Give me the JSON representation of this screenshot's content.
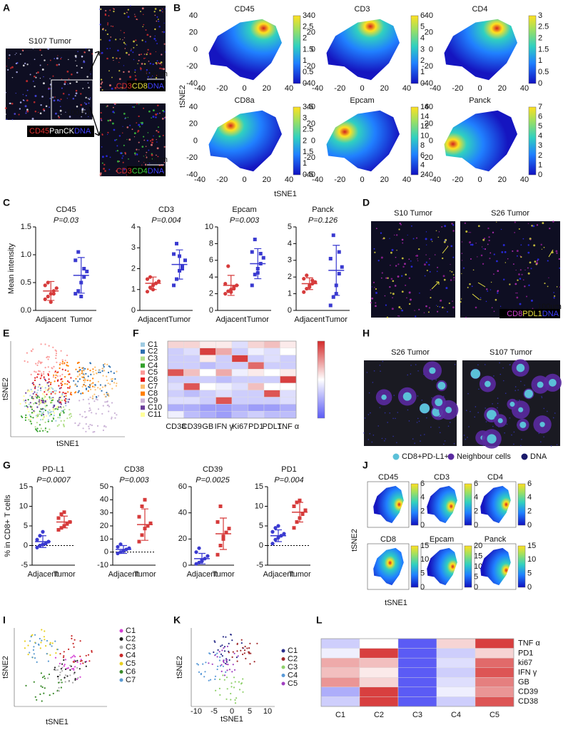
{
  "panel_labels": [
    "A",
    "B",
    "C",
    "D",
    "E",
    "F",
    "G",
    "H",
    "I",
    "J",
    "K",
    "L"
  ],
  "panel_a": {
    "title": "S107 Tumor",
    "scale": "100µm",
    "main_legend": [
      "CD45",
      "PanCK",
      "DNA"
    ],
    "top_legend": [
      "CD3",
      "CD8",
      "DNA"
    ],
    "bottom_legend": [
      "CD3",
      "CD4",
      "DNA"
    ]
  },
  "panel_b": {
    "xlabel": "tSNE1",
    "ylabel": "tSNE2",
    "xticks": [
      -40,
      -20,
      0,
      20,
      40
    ],
    "yticks": [
      -40,
      -20,
      0,
      20,
      40
    ],
    "maps": [
      {
        "title": "CD45",
        "colorbar": [
          "0",
          "0.5",
          "1",
          "1.5",
          "2",
          "2.5",
          "3"
        ]
      },
      {
        "title": "CD3",
        "colorbar": [
          "0",
          "1",
          "2",
          "3",
          "4",
          "5",
          "6"
        ]
      },
      {
        "title": "CD4",
        "colorbar": [
          "0",
          "0.5",
          "1",
          "1.5",
          "2",
          "2.5",
          "3"
        ]
      },
      {
        "title": "CD8a",
        "colorbar": [
          "0.5",
          "1",
          "1.5",
          "2",
          "2.5",
          "3",
          "3.5"
        ]
      },
      {
        "title": "Epcam",
        "colorbar": [
          "2",
          "4",
          "6",
          "8",
          "10",
          "12",
          "14",
          "16"
        ]
      },
      {
        "title": "Panck",
        "colorbar": [
          "0",
          "1",
          "2",
          "3",
          "4",
          "5",
          "6",
          "7"
        ]
      }
    ]
  },
  "panel_d": {
    "titles": [
      "S10 Tumor",
      "S26 Tumor"
    ],
    "legend": [
      "CD8",
      "PDL1",
      "DNA"
    ],
    "scale": "100µm"
  },
  "panel_e": {
    "xlabel": "tSNE1",
    "ylabel": "tSNE2"
  },
  "panel_h": {
    "titles": [
      "S26 Tumor",
      "S107 Tumor"
    ],
    "legend": [
      {
        "name": "CD8+PD-L1+",
        "color": "#5bc0d8"
      },
      {
        "name": "Neighbour cells",
        "color": "#5a2aa0"
      },
      {
        "name": "DNA",
        "color": "#1a1a6a"
      }
    ]
  },
  "panel_i": {
    "xlabel": "tSNE1",
    "ylabel": "tSNE2",
    "legend": [
      {
        "name": "C1",
        "color": "#d43fd4"
      },
      {
        "name": "C2",
        "color": "#222222"
      },
      {
        "name": "C3",
        "color": "#aaaaaa"
      },
      {
        "name": "C4",
        "color": "#c82828"
      },
      {
        "name": "C5",
        "color": "#e8d020"
      },
      {
        "name": "C6",
        "color": "#3a8a2a"
      },
      {
        "name": "C7",
        "color": "#5a9ad0"
      }
    ]
  },
  "panel_j": {
    "xlabel": "tSNE1",
    "ylabel": "tSNE2",
    "maps": [
      {
        "title": "CD45",
        "colorbar": [
          "0",
          "2",
          "4",
          "6"
        ]
      },
      {
        "title": "CD3",
        "colorbar": [
          "0",
          "2",
          "4",
          "6"
        ]
      },
      {
        "title": "CD4",
        "colorbar": [
          "0",
          "2",
          "4",
          "6"
        ]
      },
      {
        "title": "CD8",
        "colorbar": [
          "0",
          "5",
          "10",
          "15"
        ]
      },
      {
        "title": "Epcam",
        "colorbar": [
          "0",
          "5",
          "10",
          "15",
          "20"
        ]
      },
      {
        "title": "Panck",
        "colorbar": [
          "0",
          "5",
          "10",
          "15"
        ]
      }
    ]
  },
  "panel_k": {
    "xlabel": "tSNE1",
    "ylabel": "tSNE2",
    "xticks": [
      -10,
      -5,
      0,
      5,
      10
    ],
    "legend": [
      {
        "name": "C1",
        "color": "#2b2f8a"
      },
      {
        "name": "C2",
        "color": "#a0282a"
      },
      {
        "name": "C3",
        "color": "#8fd06a"
      },
      {
        "name": "C4",
        "color": "#5a9ad8"
      },
      {
        "name": "C5",
        "color": "#a040c0"
      }
    ]
  },
  "chart_data": [
    {
      "type": "dot",
      "title": "CD45",
      "subtitle": "P=0.03",
      "ylabel": "Mean intensity",
      "categories": [
        "Adjacent",
        "Tumor"
      ],
      "colors": [
        "#d63b3b",
        "#3a3ad0"
      ],
      "ylim": [
        0,
        1.5
      ],
      "yticks": [
        {
          "value": 0,
          "label": "0.0"
        },
        {
          "value": 0.5,
          "label": "0.5"
        },
        {
          "value": 1,
          "label": "1.0"
        },
        {
          "value": 1.5,
          "label": "1.5"
        }
      ],
      "points": [
        [
          0.2,
          0.25,
          0.3,
          0.35,
          0.4,
          0.45,
          0.5,
          0.15,
          0.3
        ],
        [
          0.3,
          0.35,
          0.5,
          0.6,
          0.7,
          0.9,
          1.05,
          0.25,
          0.75
        ]
      ],
      "means": [
        0.35,
        0.63
      ],
      "sd": [
        0.17,
        0.32
      ]
    },
    {
      "type": "dot",
      "title": "CD3",
      "subtitle": "P=0.004",
      "categories": [
        "Adjacent",
        "Tumor"
      ],
      "colors": [
        "#d63b3b",
        "#3a3ad0"
      ],
      "ylim": [
        0,
        4
      ],
      "yticks": [
        0,
        1,
        2,
        3,
        4
      ],
      "points": [
        [
          0.9,
          1.1,
          1.2,
          1.3,
          1.4,
          1.5,
          1.6,
          1.0,
          1.3
        ],
        [
          1.2,
          1.5,
          1.9,
          2.1,
          2.4,
          2.7,
          3.2,
          2.6,
          2.0
        ]
      ],
      "means": [
        1.3,
        2.2
      ],
      "sd": [
        0.3,
        0.7
      ]
    },
    {
      "type": "dot",
      "title": "Epcam",
      "subtitle": "P=0.003",
      "categories": [
        "Adjacent",
        "Tumor"
      ],
      "colors": [
        "#d63b3b",
        "#3a3ad0"
      ],
      "ylim": [
        0,
        10
      ],
      "yticks": [
        0,
        2,
        4,
        6,
        8,
        10
      ],
      "points": [
        [
          2.0,
          2.3,
          2.5,
          2.8,
          3.0,
          3.2,
          5.3,
          2.2,
          2.6
        ],
        [
          3.0,
          4.3,
          5.0,
          5.6,
          6.3,
          7.0,
          8.5,
          4.5,
          6.8
        ]
      ],
      "means": [
        3.0,
        5.6
      ],
      "sd": [
        1.2,
        1.8
      ]
    },
    {
      "type": "dot",
      "title": "Panck",
      "subtitle": "P=0.126",
      "categories": [
        "Adjacent",
        "Tumor"
      ],
      "colors": [
        "#d63b3b",
        "#3a3ad0"
      ],
      "ylim": [
        0,
        5
      ],
      "yticks": [
        0,
        1,
        2,
        3,
        4,
        5
      ],
      "points": [
        [
          1.1,
          1.3,
          1.5,
          1.6,
          1.7,
          1.9,
          2.1,
          1.4,
          1.8
        ],
        [
          0.3,
          0.8,
          1.5,
          2.2,
          2.6,
          3.1,
          4.5,
          1.0,
          3.5
        ]
      ],
      "means": [
        1.6,
        2.4
      ],
      "sd": [
        0.35,
        1.5
      ]
    },
    {
      "type": "dot",
      "title": "PD-L1",
      "subtitle": "P=0.0007",
      "ylabel": "% in CD8+ T cells",
      "categories": [
        "Adjacent",
        "Tumor"
      ],
      "colors": [
        "#3a3ad0",
        "#d63b3b"
      ],
      "ylim": [
        -5,
        15
      ],
      "yticks": [
        -5,
        0,
        5,
        10,
        15
      ],
      "hline": 0,
      "points": [
        [
          -0.5,
          0,
          0.3,
          0.5,
          1,
          1.5,
          2.5,
          3.5
        ],
        [
          4,
          4.5,
          5,
          5.5,
          6,
          7,
          8,
          8.5
        ]
      ],
      "means": [
        1,
        6
      ],
      "sd": [
        1.5,
        1.5
      ]
    },
    {
      "type": "dot",
      "title": "CD38",
      "subtitle": "P=0.003",
      "categories": [
        "Adjacent",
        "Tumor"
      ],
      "colors": [
        "#3a3ad0",
        "#d63b3b"
      ],
      "ylim": [
        -10,
        50
      ],
      "yticks": [
        -10,
        0,
        10,
        20,
        30,
        40,
        50
      ],
      "hline": 0,
      "points": [
        [
          -1,
          0,
          1,
          2,
          3,
          4,
          6,
          1
        ],
        [
          8,
          13,
          18,
          20,
          22,
          27,
          35,
          40
        ]
      ],
      "means": [
        2,
        21
      ],
      "sd": [
        3,
        12
      ]
    },
    {
      "type": "dot",
      "title": "CD39",
      "subtitle": "P=0.0025",
      "categories": [
        "Adjacent",
        "Tumor"
      ],
      "colors": [
        "#3a3ad0",
        "#d63b3b"
      ],
      "ylim": [
        0,
        60
      ],
      "yticks": [
        0,
        20,
        40,
        60
      ],
      "points": [
        [
          1,
          2,
          3,
          5,
          7,
          10,
          13,
          4
        ],
        [
          8,
          15,
          20,
          25,
          28,
          33,
          45,
          22
        ]
      ],
      "means": [
        5,
        24
      ],
      "sd": [
        4,
        12
      ]
    },
    {
      "type": "dot",
      "title": "PD1",
      "subtitle": "P=0.004",
      "categories": [
        "Adjacent",
        "Tumor"
      ],
      "colors": [
        "#3a3ad0",
        "#d63b3b"
      ],
      "ylim": [
        -5,
        15
      ],
      "yticks": [
        -5,
        0,
        5,
        10,
        15
      ],
      "hline": 0,
      "points": [
        [
          0.5,
          1.5,
          2,
          2.5,
          3,
          3.5,
          4.5,
          5
        ],
        [
          4.5,
          6,
          7,
          8,
          9,
          10,
          11,
          11.5
        ]
      ],
      "means": [
        2.5,
        8.5
      ],
      "sd": [
        1.5,
        2.5
      ]
    },
    {
      "type": "heatmap",
      "row_label_side": "left",
      "zlim": [
        -1,
        1
      ],
      "columns": [
        "CD38",
        "CD39",
        "GB",
        "IFN γ",
        "Ki67",
        "PD1",
        "PDL1",
        "TNF α"
      ],
      "rows": [
        "C1",
        "C2",
        "C3",
        "C4",
        "C5",
        "C6",
        "C7",
        "C8",
        "C9",
        "C10",
        "C11"
      ],
      "row_colors": [
        "#9ecae1",
        "#2c6fb0",
        "#b2df8a",
        "#33a02c",
        "#fb9a99",
        "#e31a1c",
        "#fdbf6f",
        "#ff7f00",
        "#cab2d6",
        "#6a3d9a",
        "#ffff99"
      ],
      "values": [
        [
          0.2,
          0.2,
          0.1,
          0.1,
          -0.2,
          0.2,
          0.3,
          0.1
        ],
        [
          -0.3,
          -0.2,
          0.9,
          0.4,
          -0.3,
          -0.1,
          -0.2,
          0.0
        ],
        [
          -0.3,
          -0.3,
          0.1,
          -0.3,
          0.9,
          -0.3,
          -0.2,
          -0.3
        ],
        [
          -0.3,
          -0.3,
          -0.4,
          -0.3,
          -0.3,
          0.7,
          -0.3,
          -0.3
        ],
        [
          0.8,
          0.3,
          0.0,
          0.4,
          -0.1,
          0.1,
          0.0,
          0.1
        ],
        [
          -0.3,
          -0.3,
          -0.3,
          -0.4,
          -0.3,
          -0.3,
          -0.3,
          0.9
        ],
        [
          -0.2,
          0.8,
          0.0,
          -0.1,
          -0.2,
          0.3,
          0.0,
          0.0
        ],
        [
          -0.3,
          -0.4,
          -0.3,
          -0.2,
          -0.3,
          -0.3,
          0.8,
          -0.2
        ],
        [
          -0.2,
          -0.2,
          -0.3,
          0.8,
          -0.3,
          -0.3,
          -0.3,
          -0.2
        ],
        [
          -0.5,
          -0.5,
          -0.6,
          -0.6,
          -0.5,
          -0.6,
          -0.6,
          -0.5
        ],
        [
          -0.1,
          -0.4,
          -0.5,
          -0.6,
          -0.4,
          -0.3,
          -0.4,
          -0.4
        ]
      ]
    },
    {
      "type": "heatmap",
      "row_label_side": "right",
      "zlim": [
        -1,
        1
      ],
      "columns": [
        "C1",
        "C2",
        "C3",
        "C4",
        "C5"
      ],
      "rows": [
        "TNF α",
        "PD1",
        "ki67",
        "IFN γ",
        "GB",
        "CD39",
        "CD38"
      ],
      "values": [
        [
          -0.3,
          0.0,
          -1,
          0.2,
          0.9
        ],
        [
          -0.1,
          0.9,
          -1,
          -0.3,
          0.2
        ],
        [
          0.4,
          0.3,
          -1,
          -0.2,
          0.7
        ],
        [
          0.3,
          0.1,
          -1,
          -0.3,
          0.8
        ],
        [
          0.5,
          0.2,
          -1,
          -0.2,
          0.6
        ],
        [
          -0.5,
          0.9,
          -1,
          -0.1,
          0.5
        ],
        [
          -0.3,
          0.9,
          -1,
          -0.3,
          0.8
        ]
      ]
    }
  ]
}
